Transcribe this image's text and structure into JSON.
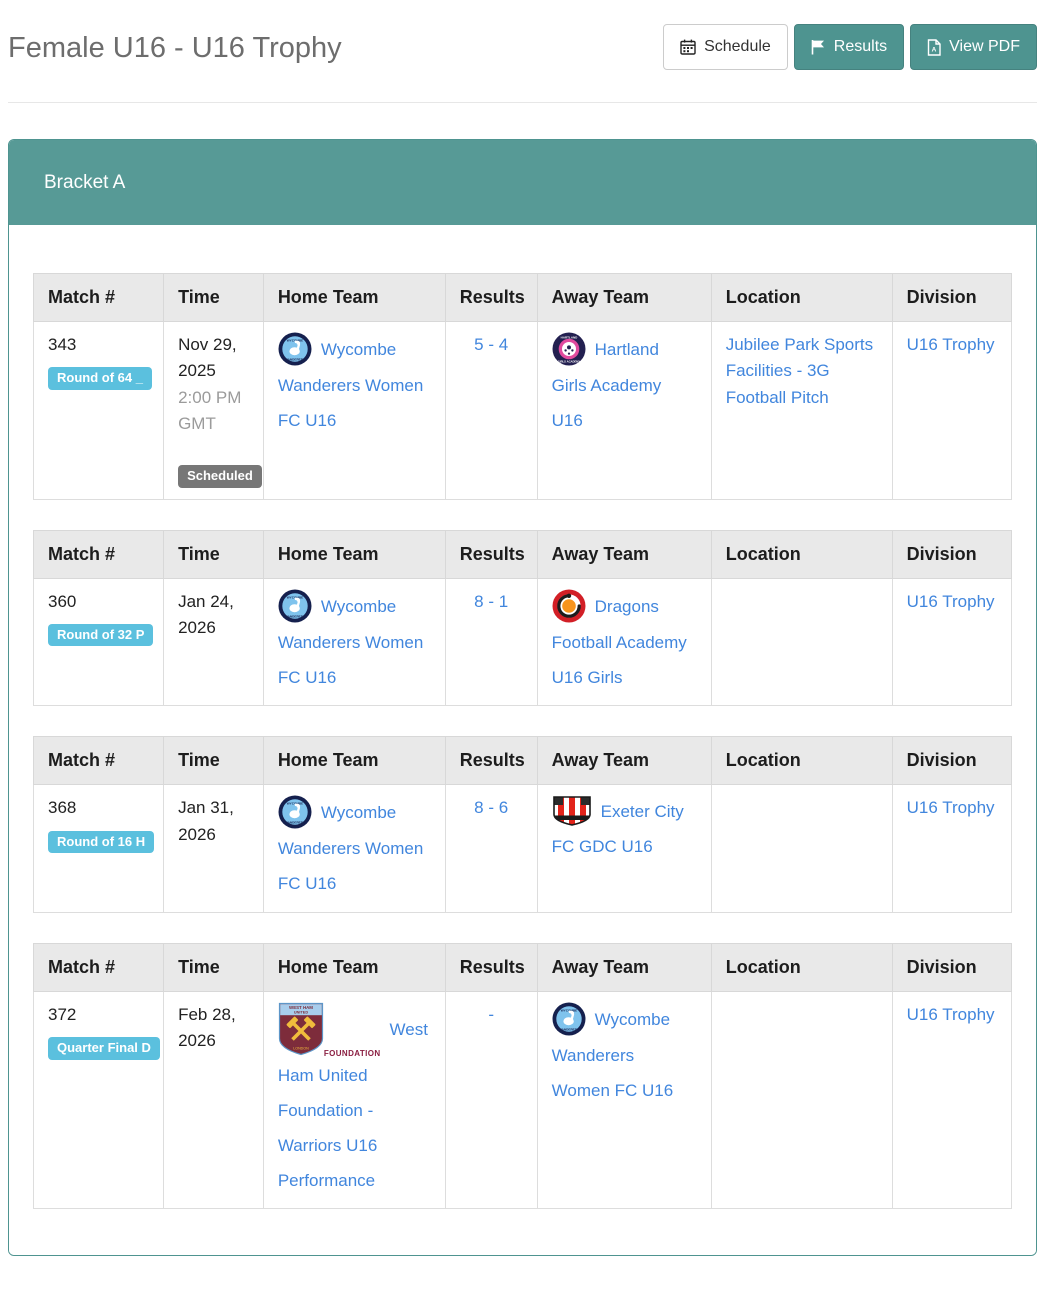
{
  "page": {
    "title": "Female U16 - U16 Trophy",
    "buttons": {
      "schedule": {
        "label": "Schedule"
      },
      "results": {
        "label": "Results"
      },
      "view_pdf": {
        "label": "View PDF"
      }
    }
  },
  "bracket": {
    "title": "Bracket A",
    "columns": [
      "Match #",
      "Time",
      "Home Team",
      "Results",
      "Away Team",
      "Location",
      "Division"
    ],
    "matches": [
      {
        "match_number": "343",
        "round_badge": "Round of 64 _",
        "date": "Nov 29, 2025",
        "time": "2:00 PM GMT",
        "status_badge": "Scheduled",
        "home_team": "Wycombe Wanderers Women FC U16",
        "home_logo": "wycombe",
        "results": "5 - 4",
        "away_team": "Hartland Girls Academy U16",
        "away_logo": "hartland",
        "location": "Jubilee Park Sports Facilities - 3G Football Pitch",
        "division": "U16 Trophy"
      },
      {
        "match_number": "360",
        "round_badge": "Round of 32 P",
        "date": "Jan 24, 2026",
        "time": "",
        "status_badge": "",
        "home_team": "Wycombe Wanderers Women FC U16",
        "home_logo": "wycombe",
        "results": "8 - 1",
        "away_team": "Dragons Football Academy U16 Girls",
        "away_logo": "dragons",
        "location": "",
        "division": "U16 Trophy"
      },
      {
        "match_number": "368",
        "round_badge": "Round of 16 H",
        "date": "Jan 31, 2026",
        "time": "",
        "status_badge": "",
        "home_team": "Wycombe Wanderers Women FC U16",
        "home_logo": "wycombe",
        "results": "8 - 6",
        "away_team": "Exeter City FC GDC U16",
        "away_logo": "exeter",
        "location": "",
        "division": "U16 Trophy"
      },
      {
        "match_number": "372",
        "round_badge": "Quarter Final D",
        "date": "Feb 28, 2026",
        "time": "",
        "status_badge": "",
        "home_team": "West Ham United Foundation - Warriors U16 Performance",
        "home_logo": "westham",
        "results": "-",
        "away_team": "Wycombe Wanderers Women FC U16",
        "away_logo": "wycombe",
        "location": "",
        "division": "U16 Trophy"
      }
    ]
  },
  "logo_text": {
    "wycombe_top": "WYCOMBE",
    "wycombe_bottom": "WANDERERS",
    "hartland_top": "HARTLAND",
    "hartland_bottom": "GIRLS ACADEMY",
    "westham_shield_top": "WEST HAM",
    "westham_shield_top2": "UNITED",
    "westham_london": "LONDON",
    "westham_foundation": "FOUNDATION"
  },
  "colors": {
    "accent_teal_button": "#4E9490",
    "panel_header_teal": "#579A96",
    "link_blue": "#4186DD",
    "round_badge_blue": "#5BC0DE",
    "status_badge_gray": "#777777"
  }
}
